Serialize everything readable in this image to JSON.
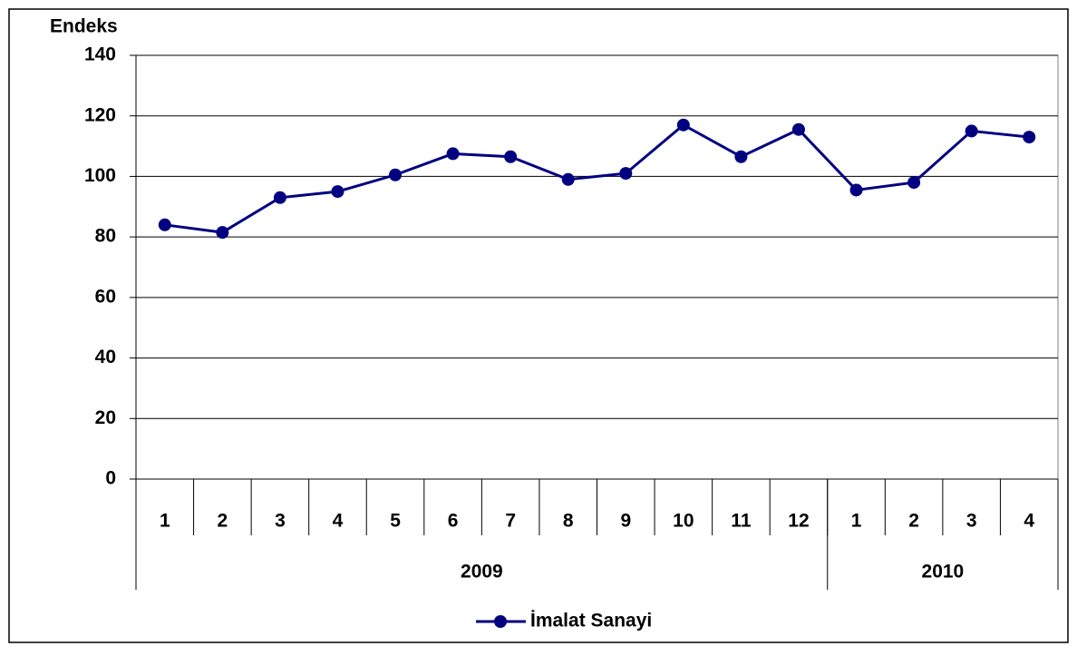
{
  "chart_data": {
    "type": "line",
    "y_label": "Endeks",
    "categories": [
      "1",
      "2",
      "3",
      "4",
      "5",
      "6",
      "7",
      "8",
      "9",
      "10",
      "11",
      "12",
      "1",
      "2",
      "3",
      "4"
    ],
    "groups": [
      {
        "name": "2009",
        "count": 12
      },
      {
        "name": "2010",
        "count": 4
      }
    ],
    "series": [
      {
        "name": "İmalat Sanayi",
        "color": "#000080",
        "values": [
          84,
          81.5,
          93,
          95,
          100.5,
          107.5,
          106.5,
          99,
          101,
          117,
          106.5,
          115.5,
          95.5,
          98,
          115,
          113
        ]
      }
    ],
    "ylim": [
      0,
      140
    ],
    "yticks": [
      0,
      20,
      40,
      60,
      80,
      100,
      120,
      140
    ],
    "grid": true,
    "legend": "bottom"
  }
}
